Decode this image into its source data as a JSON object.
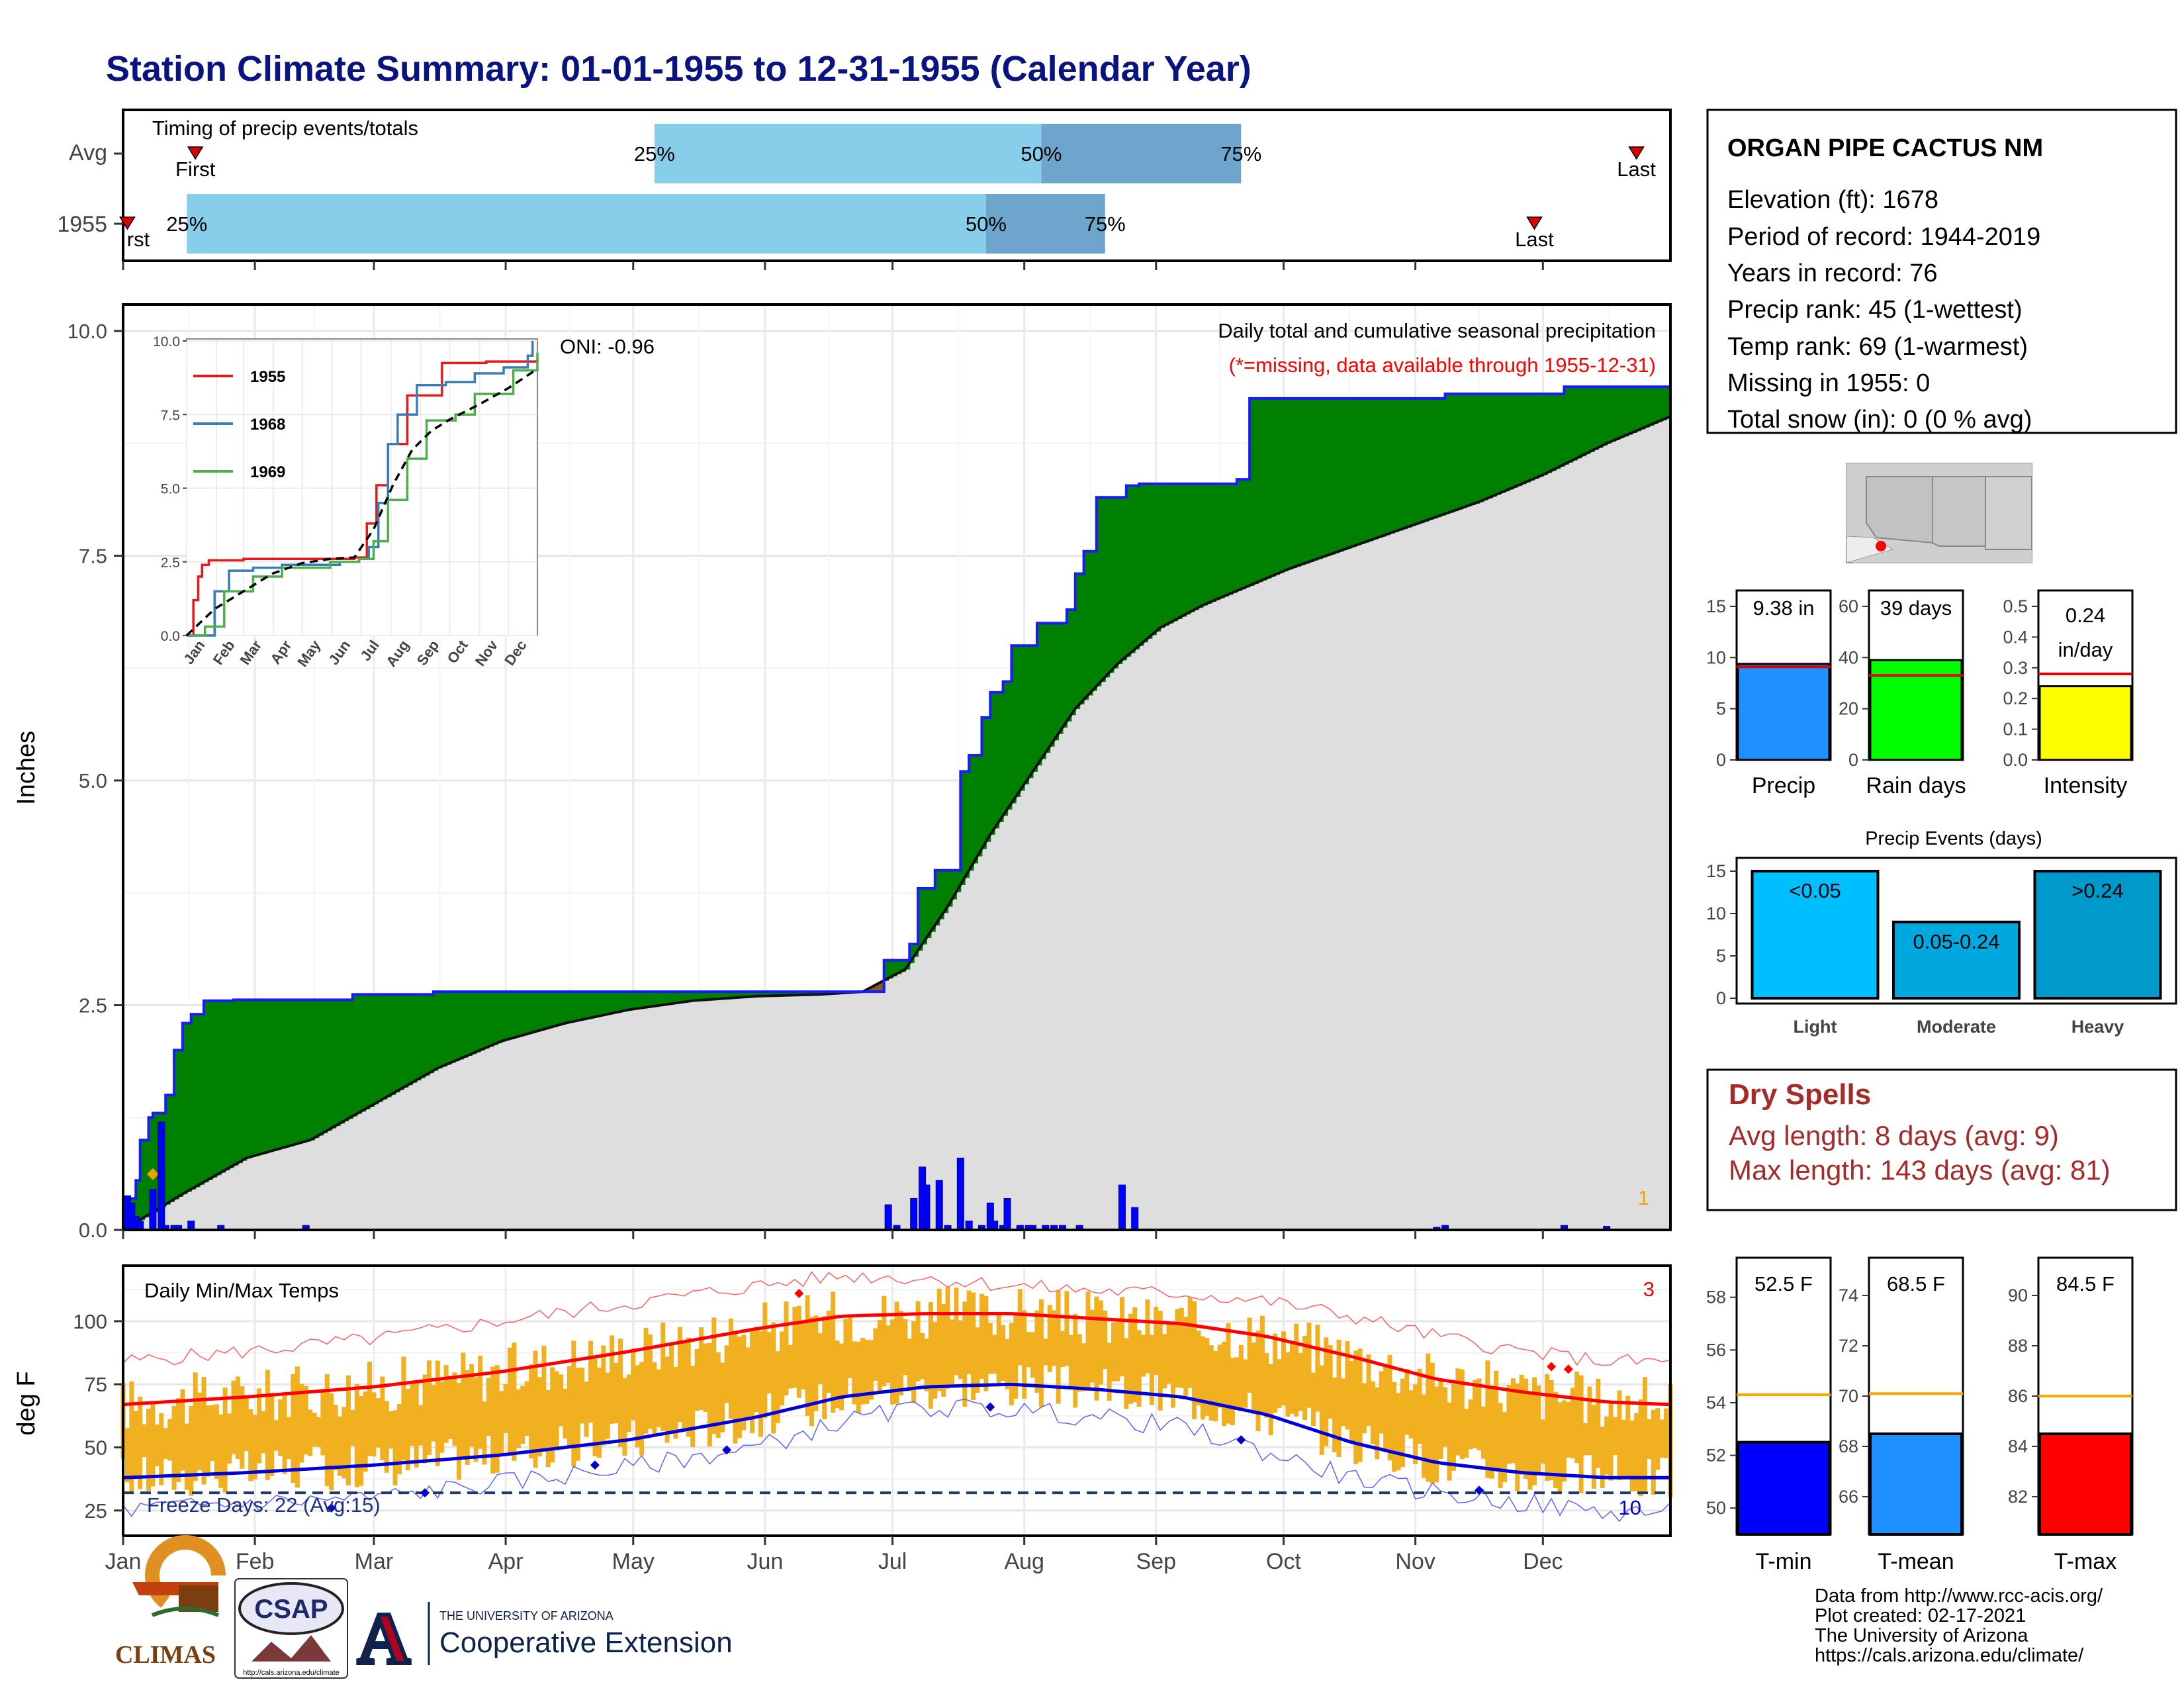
{
  "title": "Station Climate Summary: 01-01-1955 to 12-31-1955 (Calendar Year)",
  "months": [
    "Jan",
    "Feb",
    "Mar",
    "Apr",
    "May",
    "Jun",
    "Jul",
    "Aug",
    "Sep",
    "Oct",
    "Nov",
    "Dec"
  ],
  "timing": {
    "label": "Timing of precip events/totals",
    "rows": [
      "Avg",
      "1955"
    ],
    "first_label": "First",
    "last_label": "Last",
    "first_label_1955": "rst",
    "pct": [
      "25%",
      "50%",
      "75%"
    ],
    "avg": {
      "first_doy": 18,
      "p25_doy": 126,
      "p50_doy": 217,
      "p75_doy": 264,
      "last_doy": 357
    },
    "y1955": {
      "first_doy": 2,
      "p25_doy": 16,
      "p50_doy": 204,
      "p75_doy": 232,
      "last_doy": 333
    }
  },
  "station": {
    "name": "ORGAN PIPE CACTUS NM",
    "lines": [
      "Elevation (ft): 1678",
      "Period of record: 1944-2019",
      "Years in record: 76",
      "Precip rank: 45 (1-wettest)",
      "Temp rank: 69 (1-warmest)",
      "Missing in 1955: 0",
      "Total snow (in): 0 (0 % avg)"
    ]
  },
  "chart_data": [
    {
      "id": "cumulative-precip",
      "type": "area",
      "title": "Daily total and cumulative seasonal precipitation",
      "subtitle": "(*=missing, data available through 1955-12-31)",
      "ylabel": "Inches",
      "ylim": [
        0,
        10
      ],
      "yticks": [
        "0.0",
        "2.5",
        "5.0",
        "7.5",
        "10.0"
      ],
      "oni": "ONI: -0.96",
      "corner_count": "1",
      "series": [
        {
          "name": "1955 cumulative",
          "x_doy": [
            1,
            4,
            5,
            7,
            8,
            11,
            13,
            15,
            17,
            20,
            22,
            24,
            27,
            30,
            50,
            55,
            60,
            74,
            175,
            180,
            186,
            188,
            192,
            198,
            200,
            203,
            205,
            208,
            210,
            216,
            223,
            225,
            227,
            230,
            237,
            240,
            263,
            266,
            300,
            312,
            340,
            365
          ],
          "y": [
            0.35,
            0.55,
            1.0,
            1.25,
            1.3,
            1.5,
            2.0,
            2.3,
            2.4,
            2.55,
            2.55,
            2.55,
            2.56,
            2.56,
            2.56,
            2.62,
            2.62,
            2.65,
            2.65,
            3.0,
            3.18,
            3.8,
            4.0,
            5.1,
            5.28,
            5.7,
            5.98,
            6.1,
            6.5,
            6.75,
            6.9,
            7.3,
            7.55,
            8.15,
            8.28,
            8.3,
            8.35,
            9.25,
            9.25,
            9.3,
            9.38,
            9.38
          ]
        },
        {
          "name": "Avg cumulative",
          "x_doy": [
            1,
            15,
            30,
            45,
            60,
            75,
            90,
            105,
            120,
            135,
            150,
            165,
            175,
            185,
            195,
            205,
            215,
            225,
            235,
            245,
            255,
            265,
            275,
            290,
            305,
            320,
            335,
            350,
            365
          ],
          "y": [
            0.0,
            0.4,
            0.8,
            1.0,
            1.4,
            1.8,
            2.1,
            2.3,
            2.45,
            2.55,
            2.6,
            2.62,
            2.65,
            2.9,
            3.6,
            4.4,
            5.1,
            5.8,
            6.3,
            6.7,
            6.95,
            7.15,
            7.35,
            7.6,
            7.85,
            8.1,
            8.4,
            8.75,
            9.05
          ]
        },
        {
          "name": "Daily precip",
          "x_doy": [
            2,
            3,
            4,
            5,
            8,
            10,
            11,
            13,
            14,
            17,
            24,
            44,
            181,
            183,
            187,
            189,
            190,
            193,
            195,
            198,
            200,
            203,
            205,
            206,
            208,
            209,
            212,
            214,
            215,
            218,
            220,
            222,
            226,
            236,
            239,
            310,
            312,
            340,
            350
          ],
          "y": [
            0.38,
            0.3,
            0.15,
            0.1,
            0.45,
            1.2,
            0.05,
            0.05,
            0.05,
            0.1,
            0.05,
            0.05,
            0.28,
            0.05,
            0.35,
            0.7,
            0.5,
            0.55,
            0.05,
            0.8,
            0.1,
            0.05,
            0.3,
            0.1,
            0.05,
            0.35,
            0.05,
            0.05,
            0.05,
            0.05,
            0.05,
            0.05,
            0.05,
            0.5,
            0.25,
            0.03,
            0.05,
            0.05,
            0.04
          ]
        }
      ]
    },
    {
      "id": "inset-years",
      "type": "line",
      "ylim": [
        0,
        10
      ],
      "yticks": [
        "0.0",
        "2.5",
        "5.0",
        "7.5",
        "10.0"
      ],
      "xticks": [
        "Jan",
        "Feb",
        "Mar",
        "Apr",
        "May",
        "Jun",
        "Jul",
        "Aug",
        "Sep",
        "Oct",
        "Nov",
        "Dec"
      ],
      "legend": [
        "1955",
        "1968",
        "1969"
      ],
      "series": [
        {
          "name": "1955",
          "color": "#e41a1c",
          "x_doy": [
            1,
            8,
            13,
            17,
            24,
            60,
            175,
            188,
            198,
            210,
            230,
            266,
            312,
            365
          ],
          "y": [
            0,
            1.2,
            2.0,
            2.4,
            2.55,
            2.6,
            2.65,
            3.8,
            5.1,
            6.5,
            8.15,
            9.25,
            9.3,
            9.38
          ]
        },
        {
          "name": "1968",
          "color": "#377eb8",
          "x_doy": [
            1,
            30,
            45,
            70,
            100,
            160,
            180,
            190,
            200,
            210,
            220,
            240,
            270,
            300,
            330,
            355,
            360
          ],
          "y": [
            0,
            1.5,
            2.2,
            2.3,
            2.4,
            2.5,
            2.6,
            3.0,
            4.5,
            6.5,
            7.5,
            8.5,
            8.6,
            8.9,
            9.1,
            9.5,
            10.0
          ]
        },
        {
          "name": "1969",
          "color": "#4daf4a",
          "x_doy": [
            1,
            20,
            40,
            70,
            100,
            150,
            180,
            195,
            210,
            230,
            250,
            280,
            300,
            340,
            365
          ],
          "y": [
            0,
            0.3,
            1.5,
            2.0,
            2.3,
            2.5,
            2.6,
            3.2,
            4.6,
            6.0,
            7.3,
            7.5,
            8.2,
            9.0,
            9.6
          ]
        },
        {
          "name": "average",
          "color": "#000000",
          "x_doy": [
            1,
            30,
            60,
            90,
            120,
            150,
            175,
            195,
            215,
            235,
            255,
            275,
            305,
            335,
            365
          ],
          "y": [
            0,
            0.9,
            1.5,
            2.1,
            2.45,
            2.6,
            2.65,
            3.6,
            5.1,
            6.3,
            6.95,
            7.35,
            7.85,
            8.4,
            9.05
          ]
        }
      ]
    },
    {
      "id": "precip-bars",
      "type": "bar",
      "categories": [
        "Precip",
        "Rain days",
        "Intensity"
      ],
      "values": [
        9.38,
        39,
        0.24
      ],
      "avg_lines": [
        9.1,
        33,
        0.28
      ],
      "labels": [
        "9.38 in",
        "39 days",
        "0.24",
        "in/day"
      ],
      "ylims": [
        [
          0,
          15
        ],
        [
          0,
          60
        ],
        [
          0,
          0.5
        ]
      ],
      "yticks": [
        [
          "0",
          "5",
          "10",
          "15"
        ],
        [
          "0",
          "20",
          "40",
          "60"
        ],
        [
          "0.0",
          "0.1",
          "0.2",
          "0.3",
          "0.4",
          "0.5"
        ]
      ]
    },
    {
      "id": "precip-events",
      "type": "bar",
      "title": "Precip Events (days)",
      "categories": [
        "Light",
        "Moderate",
        "Heavy"
      ],
      "values": [
        15,
        9,
        15
      ],
      "labels": [
        "<0.05",
        "0.05-0.24",
        ">0.24"
      ],
      "ylim": [
        0,
        15
      ],
      "yticks": [
        "0",
        "5",
        "10",
        "15"
      ]
    },
    {
      "id": "daily-temps",
      "type": "line",
      "title": "Daily Min/Max Temps",
      "ylabel": "deg F",
      "ylim": [
        15,
        122
      ],
      "yticks": [
        "25",
        "50",
        "75",
        "100"
      ],
      "freeze_text": "Freeze Days: 22 (Avg:15)",
      "count_top": "3",
      "count_bottom": "10",
      "freeze_line": 32,
      "series": [
        {
          "name": "Avg max",
          "x_doy": [
            1,
            30,
            60,
            90,
            120,
            150,
            170,
            190,
            210,
            230,
            250,
            270,
            290,
            310,
            330,
            350,
            365
          ],
          "y": [
            67,
            70,
            74,
            80,
            88,
            97,
            102,
            103,
            103,
            101,
            99,
            94,
            86,
            77,
            72,
            68,
            67
          ]
        },
        {
          "name": "Avg min",
          "x_doy": [
            1,
            30,
            60,
            90,
            120,
            150,
            170,
            190,
            210,
            230,
            250,
            270,
            290,
            310,
            330,
            350,
            365
          ],
          "y": [
            38,
            40,
            43,
            47,
            53,
            62,
            70,
            74,
            75,
            73,
            70,
            63,
            52,
            44,
            40,
            38,
            38
          ]
        },
        {
          "name": "Record max",
          "x_doy": [
            1,
            30,
            60,
            90,
            120,
            150,
            170,
            190,
            210,
            230,
            250,
            270,
            290,
            310,
            330,
            350,
            365
          ],
          "y": [
            84,
            88,
            93,
            100,
            107,
            114,
            118,
            117,
            114,
            112,
            111,
            108,
            102,
            94,
            88,
            84,
            84
          ]
        },
        {
          "name": "Record min",
          "x_doy": [
            1,
            30,
            60,
            90,
            120,
            150,
            170,
            190,
            210,
            230,
            250,
            270,
            290,
            310,
            330,
            350,
            365
          ],
          "y": [
            25,
            28,
            30,
            36,
            42,
            50,
            60,
            66,
            65,
            62,
            58,
            48,
            38,
            32,
            28,
            24,
            25
          ]
        }
      ]
    },
    {
      "id": "temp-bars",
      "type": "bar",
      "categories": [
        "T-min",
        "T-mean",
        "T-max"
      ],
      "values": [
        52.5,
        68.5,
        84.5
      ],
      "avg_lines": [
        54.3,
        70.1,
        86.0
      ],
      "labels": [
        "52.5 F",
        "68.5 F",
        "84.5 F"
      ],
      "ylims": [
        [
          49,
          59.5
        ],
        [
          64.5,
          75.5
        ],
        [
          80.5,
          91.5
        ]
      ],
      "yticks": [
        [
          "50",
          "52",
          "54",
          "56",
          "58"
        ],
        [
          "66",
          "68",
          "70",
          "72",
          "74"
        ],
        [
          "82",
          "84",
          "86",
          "88",
          "90"
        ]
      ]
    }
  ],
  "dry_spells": {
    "title": "Dry Spells",
    "avg": "Avg length: 8 days (avg: 9)",
    "max": "Max length: 143 days (avg: 81)"
  },
  "footer": {
    "lines": [
      "Data from http://www.rcc-acis.org/",
      "Plot created: 02-17-2021",
      "The University of Arizona",
      "https://cals.arizona.edu/climate/"
    ],
    "climas": "CLIMAS",
    "csap": "CSAP",
    "csap_url": "http://cals.arizona.edu/climate",
    "ua_small": "THE UNIVERSITY OF ARIZONA",
    "ua_big": "Cooperative Extension",
    "ua_letter": "A"
  },
  "colors": {
    "title": "#0a1480",
    "green": "#008000",
    "brown": "#8b5a1a",
    "grey": "#dedede",
    "blue": "#0000ff",
    "gold": "#f0b020",
    "red": "#ff0000",
    "navy": "#00008b"
  }
}
